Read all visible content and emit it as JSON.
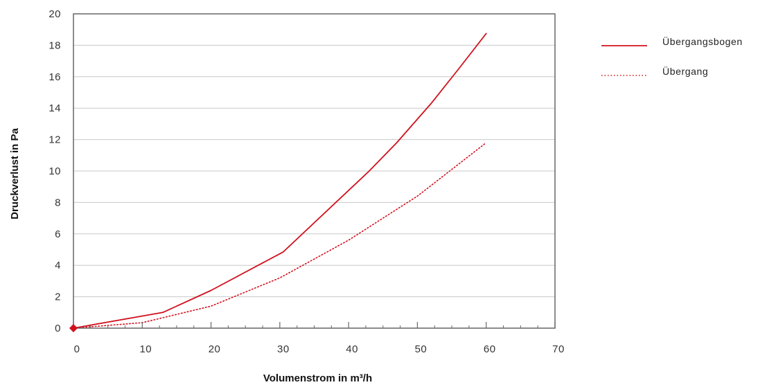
{
  "chart_data": {
    "type": "line",
    "title": "",
    "xlabel": "Volumenstrom in m³/h",
    "ylabel": "Druckverlust in Pa",
    "xlim": [
      0,
      70
    ],
    "ylim": [
      0,
      20
    ],
    "x_ticks": [
      "0",
      "10",
      "20",
      "30",
      "40",
      "50",
      "60",
      "70"
    ],
    "y_ticks": [
      "0",
      "2",
      "4",
      "6",
      "8",
      "10",
      "12",
      "14",
      "16",
      "18",
      "20"
    ],
    "grid": "horizontal",
    "legend_position": "right",
    "series": [
      {
        "name": "Übergangsbogen",
        "style": "solid",
        "color": "#d0101c",
        "x": [
          0,
          13,
          20,
          30.5,
          43,
          47,
          52,
          56,
          60
        ],
        "y": [
          0,
          1.0,
          2.4,
          4.85,
          10.0,
          11.8,
          14.3,
          16.5,
          18.75
        ]
      },
      {
        "name": "Übergang",
        "style": "dotted",
        "color": "#d0101c",
        "x": [
          0,
          10,
          20,
          30,
          40,
          50,
          60
        ],
        "y": [
          0,
          0.35,
          1.4,
          3.2,
          5.6,
          8.4,
          11.8
        ]
      }
    ],
    "marker": {
      "x": 0,
      "y": 0,
      "shape": "diamond",
      "color": "#d0101c"
    }
  }
}
